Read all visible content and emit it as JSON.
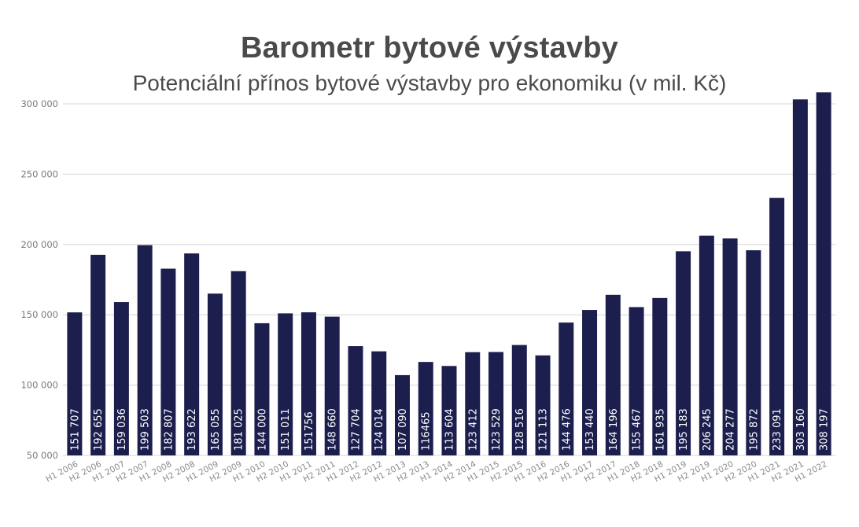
{
  "chart_data": {
    "type": "bar",
    "title": "Barometr bytové výstavby",
    "subtitle": "Potenciální přínos bytové výstavby pro ekonomiku (v mil. Kč)",
    "xlabel": "",
    "ylabel": "",
    "ylim": [
      50000,
      300000
    ],
    "yticks": [
      50000,
      100000,
      150000,
      200000,
      250000,
      300000
    ],
    "ytick_labels": [
      "50 000",
      "100 000",
      "150 000",
      "200 000",
      "250 000",
      "300 000"
    ],
    "grid": true,
    "legend": "none",
    "bar_color": "#1c1f4e",
    "categories": [
      "H1 2006",
      "H2 2006",
      "H1 2007",
      "H2 2007",
      "H1 2008",
      "H2 2008",
      "H1 2009",
      "H2 2009",
      "H1 2010",
      "H2 2010",
      "H1 2011",
      "H2 2011",
      "H1 2012",
      "H2 2012",
      "H1 2013",
      "H2 2013",
      "H1 2014",
      "H2 2014",
      "H1 2015",
      "H2 2015",
      "H1 2016",
      "H2 2016",
      "H1 2017",
      "H2 2017",
      "H1 2018",
      "H2 2018",
      "H1 2019",
      "H2 2019",
      "H1 2020",
      "H2 2020",
      "H1 2021",
      "H2 2021",
      "H1 2022"
    ],
    "values": [
      151707,
      192655,
      159036,
      199503,
      182807,
      193622,
      165055,
      181025,
      144000,
      151011,
      151756,
      148660,
      127704,
      124014,
      107090,
      116465,
      113604,
      123412,
      123529,
      128516,
      121113,
      144476,
      153440,
      164196,
      155467,
      161935,
      195183,
      206245,
      204277,
      195872,
      233091,
      303160,
      308197
    ],
    "value_labels": [
      "151 707",
      "192 655",
      "159 036",
      "199 503",
      "182 807",
      "193 622",
      "165 055",
      "181 025",
      "144 000",
      "151 011",
      "151756",
      "148 660",
      "127 704",
      "124 014",
      "107 090",
      "116465",
      "113 604",
      "123 412",
      "123 529",
      "128 516",
      "121 113",
      "144 476",
      "153 440",
      "164 196",
      "155 467",
      "161 935",
      "195 183",
      "206 245",
      "204 277",
      "195 872",
      "233 091",
      "303 160",
      "308 197"
    ]
  }
}
